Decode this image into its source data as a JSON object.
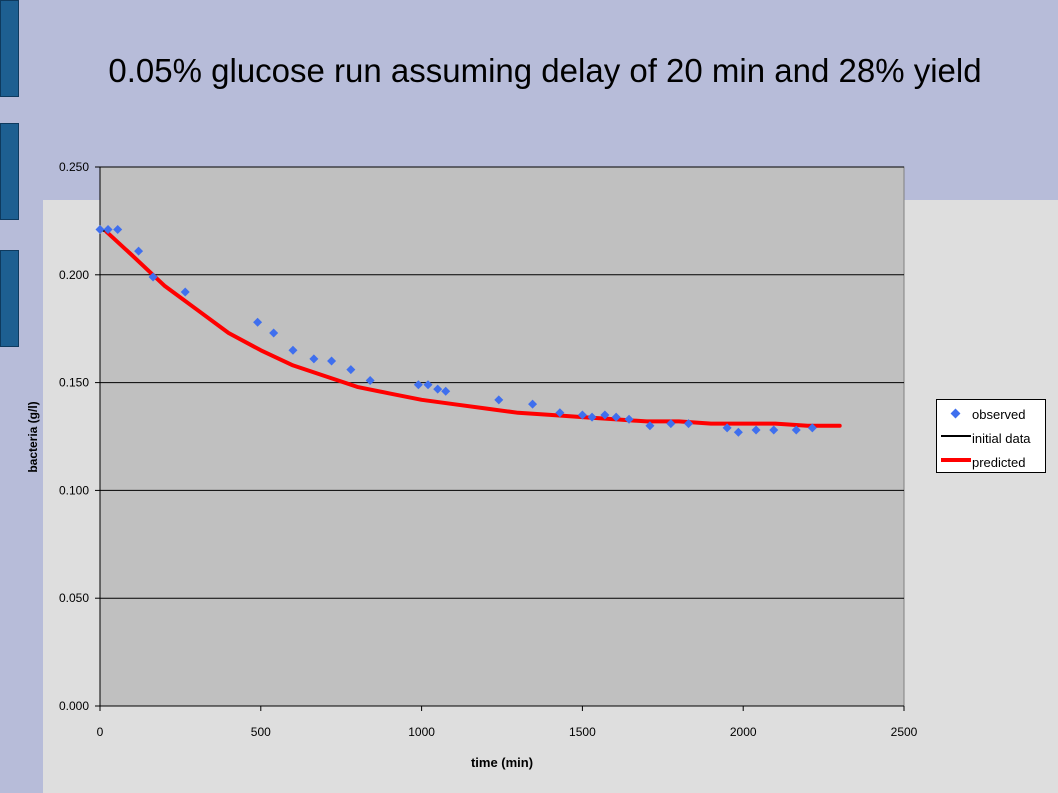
{
  "slide": {
    "title": "0.05% glucose run assuming delay of 20 min and 28% yield"
  },
  "colors": {
    "slide_background": "#b7bcd9",
    "lower_band": "#dedede",
    "sidebar_tab": "#1d5f91",
    "plot_area": "#c0c0c0",
    "observed": "#3f6fee",
    "initial_data": "#000000",
    "predicted": "#ff0000"
  },
  "chart_data": {
    "type": "scatter",
    "title": "0.05% glucose run assuming delay of 20 min and 28% yield",
    "xlabel": "time (min)",
    "ylabel": "bacteria (g/l)",
    "xlim": [
      0,
      2500
    ],
    "ylim": [
      0,
      0.25
    ],
    "x_ticks": [
      "0",
      "500",
      "1000",
      "1500",
      "2000",
      "2500"
    ],
    "y_ticks": [
      "0.000",
      "0.050",
      "0.100",
      "0.150",
      "0.200",
      "0.250"
    ],
    "grid": "horizontal",
    "legend_position": "right",
    "series": [
      {
        "name": "observed",
        "kind": "markers",
        "color": "#3f6fee",
        "x": [
          0,
          25,
          55,
          120,
          165,
          265,
          490,
          540,
          600,
          665,
          720,
          780,
          840,
          990,
          1020,
          1050,
          1075,
          1240,
          1345,
          1430,
          1500,
          1530,
          1570,
          1605,
          1645,
          1710,
          1775,
          1830,
          1950,
          1985,
          2040,
          2095,
          2165,
          2215
        ],
        "y": [
          0.221,
          0.221,
          0.221,
          0.211,
          0.199,
          0.192,
          0.178,
          0.173,
          0.165,
          0.161,
          0.16,
          0.156,
          0.151,
          0.149,
          0.149,
          0.147,
          0.146,
          0.142,
          0.14,
          0.136,
          0.135,
          0.134,
          0.135,
          0.134,
          0.133,
          0.13,
          0.131,
          0.131,
          0.129,
          0.127,
          0.128,
          0.128,
          0.128,
          0.129
        ]
      },
      {
        "name": "initial data",
        "kind": "line",
        "color": "#000000",
        "x": [
          0,
          20
        ],
        "y": [
          0.221,
          0.22
        ]
      },
      {
        "name": "predicted",
        "kind": "line",
        "color": "#ff0000",
        "x": [
          20,
          100,
          200,
          300,
          400,
          500,
          600,
          700,
          800,
          900,
          1000,
          1100,
          1200,
          1300,
          1400,
          1500,
          1600,
          1700,
          1800,
          1900,
          2000,
          2100,
          2200,
          2300
        ],
        "y": [
          0.22,
          0.209,
          0.195,
          0.184,
          0.173,
          0.165,
          0.158,
          0.153,
          0.148,
          0.145,
          0.142,
          0.14,
          0.138,
          0.136,
          0.135,
          0.134,
          0.133,
          0.132,
          0.132,
          0.131,
          0.131,
          0.131,
          0.13,
          0.13
        ]
      }
    ]
  }
}
